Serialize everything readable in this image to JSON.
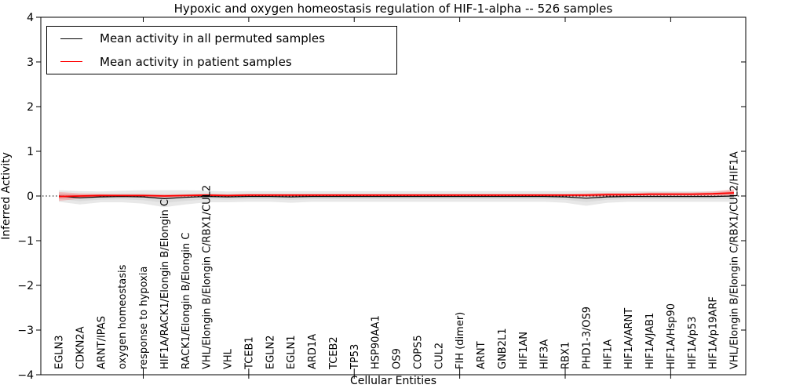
{
  "title": "Hypoxic and oxygen homeostasis regulation of HIF-1-alpha -- 526 samples",
  "legend": {
    "items": [
      {
        "label": "Mean activity in all permuted samples",
        "color": "#000000"
      },
      {
        "label": "Mean activity in patient samples",
        "color": "#ff0000"
      }
    ]
  },
  "axes": {
    "xlabel": "Cellular Entities",
    "ylabel": "Inferred Activity"
  },
  "chart_data": {
    "type": "line",
    "title": "Hypoxic and oxygen homeostasis regulation of HIF-1-alpha -- 526 samples",
    "xlabel": "Cellular Entities",
    "ylabel": "Inferred Activity",
    "ylim": [
      -4,
      4
    ],
    "yticks": [
      4,
      3,
      2,
      1,
      0,
      -1,
      -2,
      -3,
      -4
    ],
    "ytick_labels": [
      "4",
      "3",
      "2",
      "1",
      "0",
      "−1",
      "−2",
      "−3",
      "−4"
    ],
    "grid": false,
    "legend_position": "upper left",
    "zero_line": {
      "style": "dotted",
      "y": 0,
      "color": "#000000"
    },
    "major_tick_indices": [
      4,
      9,
      14,
      19,
      24,
      29
    ],
    "categories": [
      "EGLN3",
      "CDKN2A",
      "ARNT/IPAS",
      "oxygen homeostasis",
      "response to hypoxia",
      "HIF1A/RACK1/Elongin B/Elongin C",
      "RACK1/Elongin B/Elongin C",
      "VHL/Elongin B/Elongin C/RBX1/CUL2",
      "VHL",
      "TCEB1",
      "EGLN2",
      "EGLN1",
      "ARD1A",
      "TCEB2",
      "TP53",
      "HSP90AA1",
      "OS9",
      "COPS5",
      "CUL2",
      "FIH (dimer)",
      "ARNT",
      "GNB2L1",
      "HIF1AN",
      "HIF3A",
      "RBX1",
      "PHD1-3/OS9",
      "HIF1A",
      "HIF1A/ARNT",
      "HIF1A/JAB1",
      "HIF1A/Hsp90",
      "HIF1A/p53",
      "HIF1A/p19ARF",
      "VHL/Elongin B/Elongin C/RBX1/CUL2/HIF1A"
    ],
    "series": [
      {
        "name": "Mean activity in all permuted samples",
        "color": "#000000",
        "band_color": "#c8c8c8",
        "values": [
          0,
          -0.04,
          -0.02,
          -0.01,
          -0.02,
          -0.06,
          -0.03,
          -0.01,
          -0.02,
          -0.01,
          -0.01,
          -0.02,
          -0.01,
          -0.01,
          -0.01,
          -0.01,
          -0.01,
          -0.01,
          -0.01,
          -0.01,
          -0.01,
          -0.01,
          -0.01,
          -0.01,
          -0.02,
          -0.05,
          -0.02,
          -0.01,
          -0.01,
          -0.01,
          -0.01,
          -0.01,
          0
        ],
        "band": [
          0.13,
          0.15,
          0.12,
          0.13,
          0.15,
          0.19,
          0.16,
          0.13,
          0.12,
          0.12,
          0.12,
          0.13,
          0.12,
          0.12,
          0.12,
          0.12,
          0.12,
          0.12,
          0.12,
          0.12,
          0.12,
          0.12,
          0.12,
          0.12,
          0.13,
          0.17,
          0.13,
          0.12,
          0.12,
          0.12,
          0.12,
          0.12,
          0.13
        ]
      },
      {
        "name": "Mean activity in patient samples",
        "color": "#ff0000",
        "band_color": "#ff5a5a",
        "values": [
          -0.01,
          0,
          0.01,
          0.01,
          0.01,
          0,
          0.01,
          0.02,
          0.01,
          0.02,
          0.02,
          0.02,
          0.02,
          0.02,
          0.02,
          0.02,
          0.02,
          0.02,
          0.02,
          0.02,
          0.02,
          0.02,
          0.02,
          0.02,
          0.02,
          0.02,
          0.03,
          0.03,
          0.04,
          0.04,
          0.04,
          0.05,
          0.07
        ],
        "band": [
          0.1,
          0.06,
          0.04,
          0.03,
          0.03,
          0.04,
          0.03,
          0.03,
          0.03,
          0.03,
          0.03,
          0.03,
          0.03,
          0.03,
          0.03,
          0.03,
          0.03,
          0.03,
          0.03,
          0.03,
          0.03,
          0.03,
          0.03,
          0.03,
          0.03,
          0.04,
          0.04,
          0.04,
          0.04,
          0.04,
          0.04,
          0.05,
          0.08
        ]
      }
    ]
  }
}
